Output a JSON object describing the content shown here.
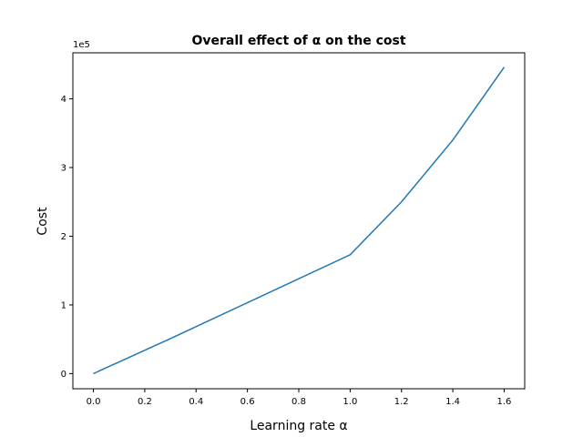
{
  "chart_data": {
    "type": "line",
    "title": "Overall effect of α on the cost",
    "xlabel": "Learning rate α",
    "ylabel": "Cost",
    "y_offset_label": "1e5",
    "x_ticks": [
      "0.0",
      "0.2",
      "0.4",
      "0.6",
      "0.8",
      "1.0",
      "1.2",
      "1.4",
      "1.6"
    ],
    "y_ticks": [
      "0",
      "1",
      "2",
      "3",
      "4"
    ],
    "xlim": [
      -0.08,
      1.68
    ],
    "ylim": [
      -22000,
      467000
    ],
    "grid": false,
    "series": [
      {
        "color": "#1f77b4",
        "x": [
          0.0,
          0.001,
          0.003,
          0.01,
          0.03,
          0.1,
          0.3,
          1.0,
          1.2,
          1.4,
          1.6
        ],
        "y": [
          0,
          300,
          500,
          1700,
          5200,
          17000,
          51000,
          173000,
          250000,
          340000,
          446000
        ]
      }
    ]
  }
}
